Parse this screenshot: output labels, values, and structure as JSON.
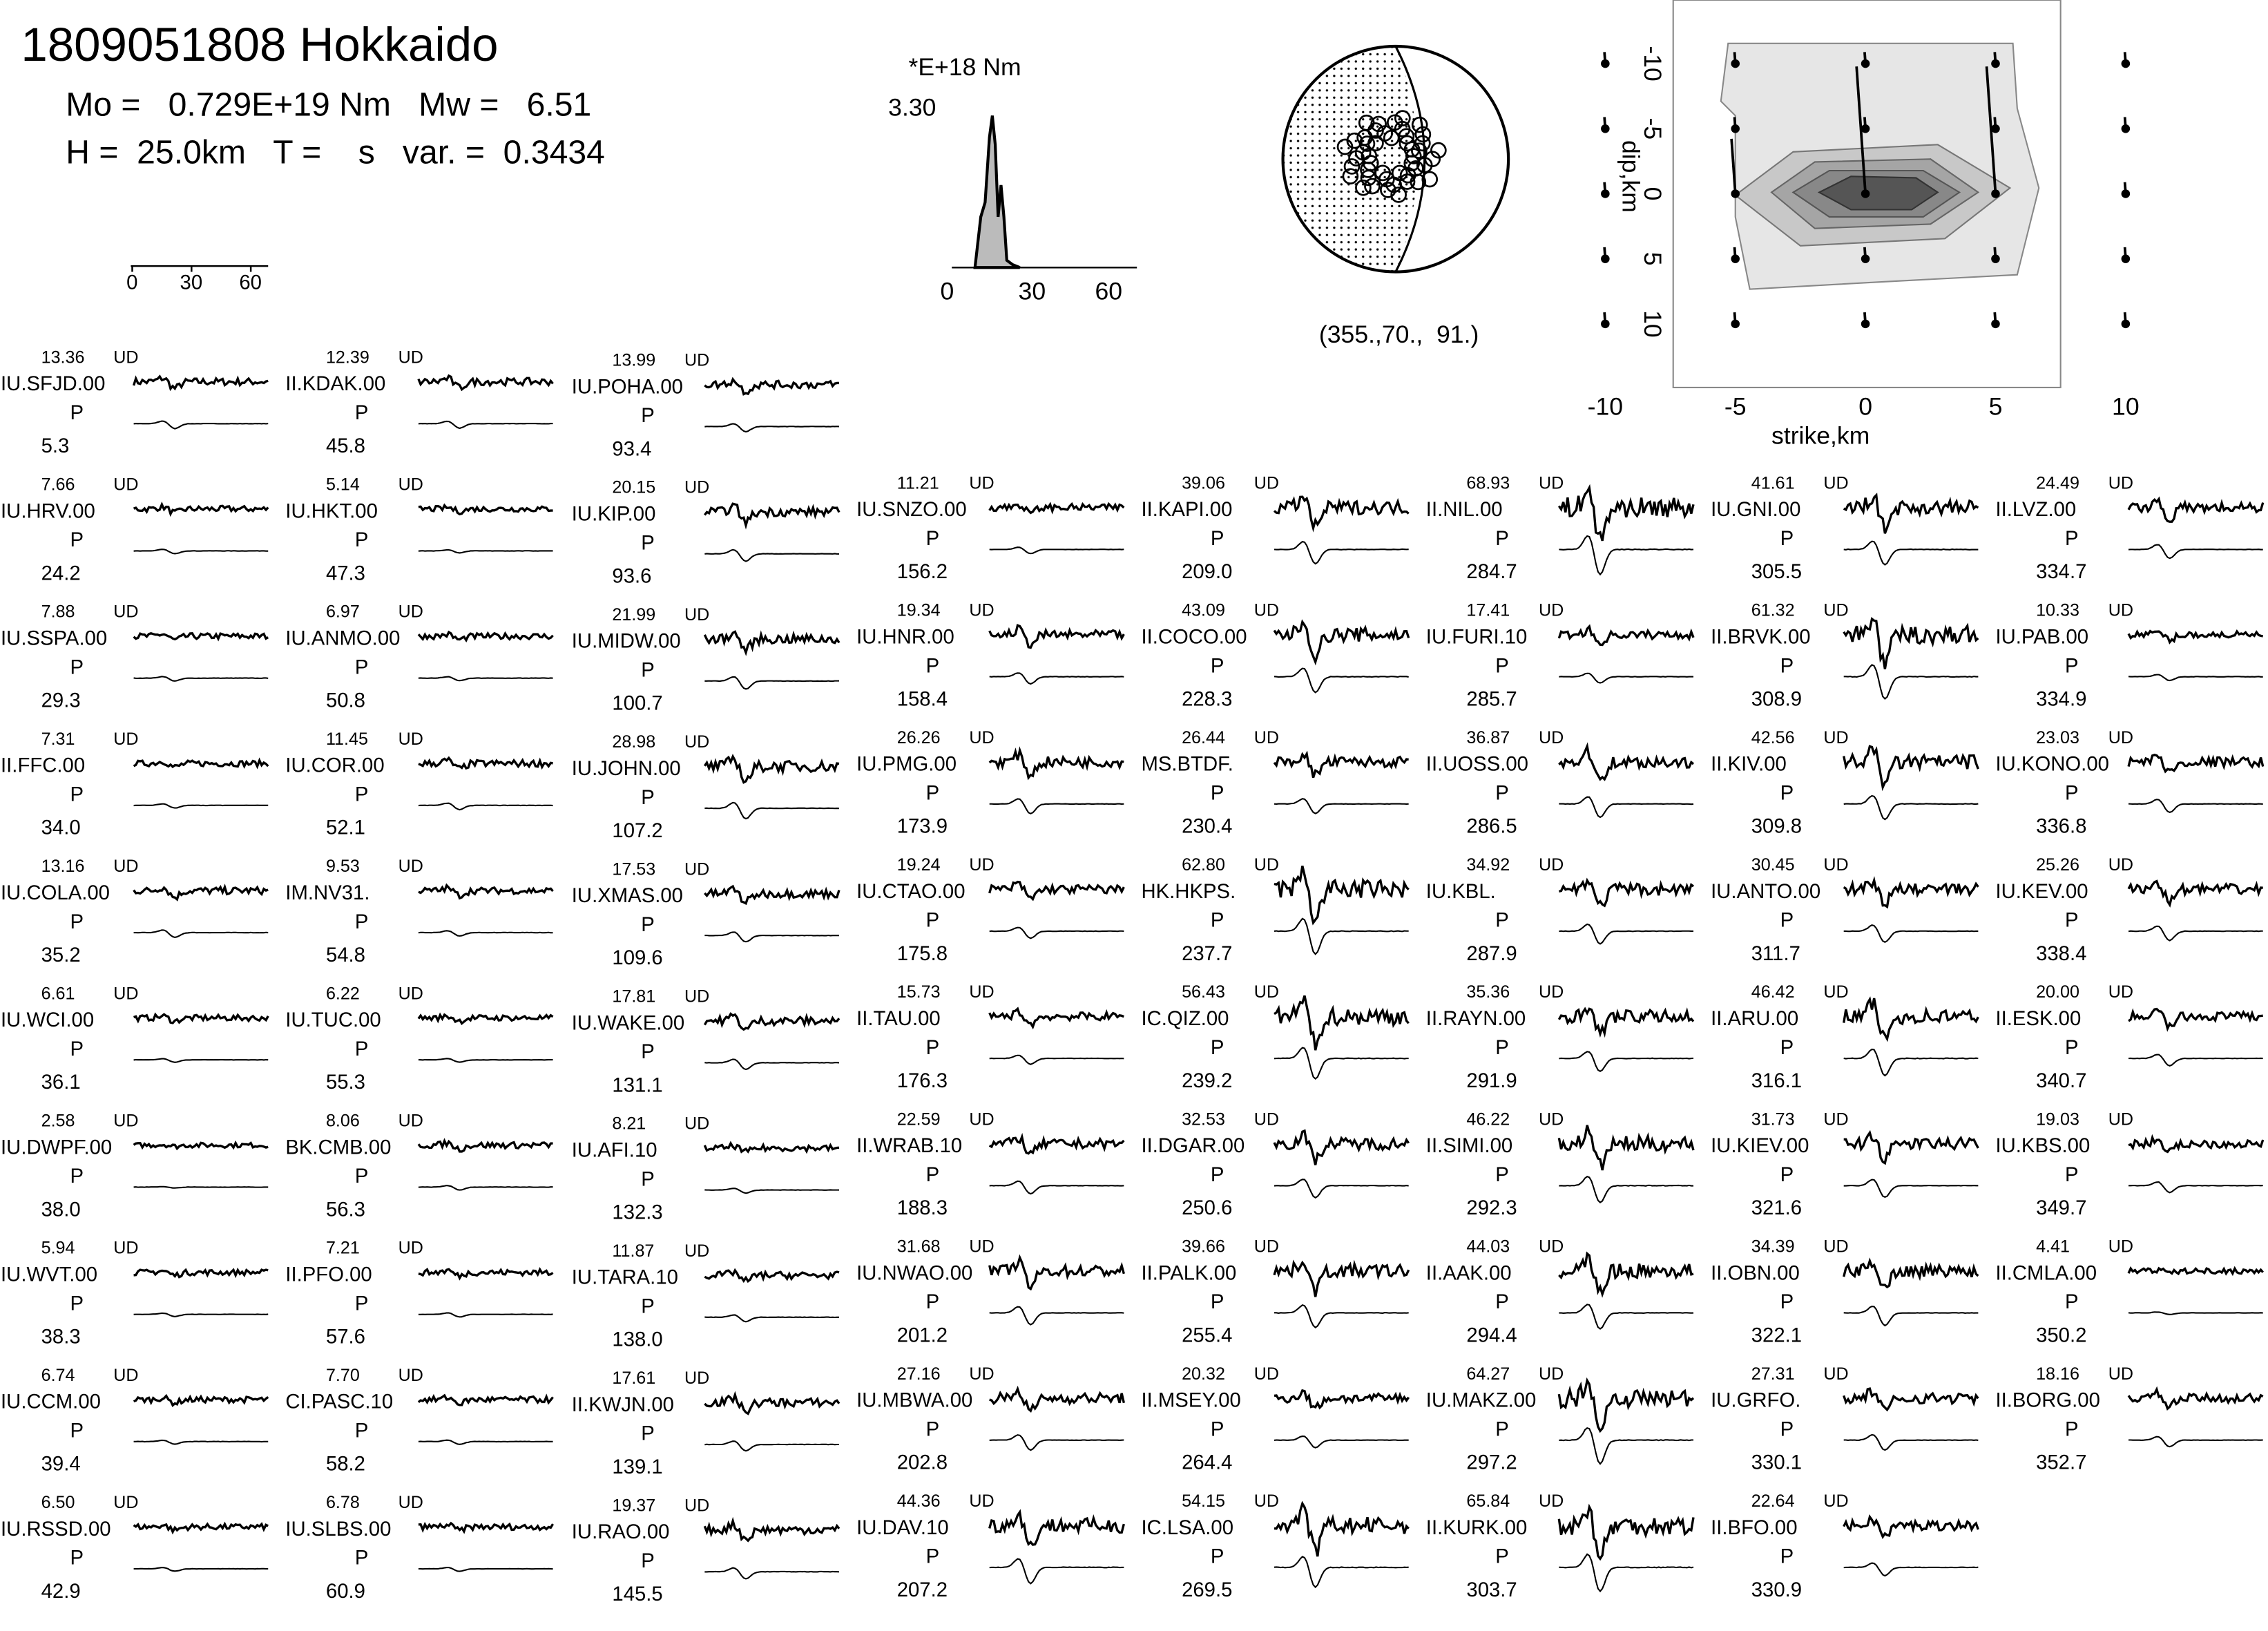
{
  "header": {
    "title": "1809051808 Hokkaido",
    "line1": "Mo =   0.729E+19 Nm   Mw =   6.51",
    "line2": "H =  25.0km   T =    s   var. =  0.3434"
  },
  "scale_bar": {
    "ticks": [
      "0",
      "30",
      "60"
    ]
  },
  "stf": {
    "unit": "*E+18 Nm",
    "max": "3.30",
    "ticks": [
      "0",
      "30",
      "60"
    ]
  },
  "mechanism": {
    "label": "(355.,70.,  91.)"
  },
  "slip_map": {
    "xlabel": "strike,km",
    "ylabel": "dip,km",
    "xticks": [
      "-10",
      "-5",
      "0",
      "5",
      "10"
    ],
    "yticks": [
      "-10",
      "-5",
      "0",
      "5",
      "10"
    ]
  },
  "columns": [
    [
      {
        "name": "IU.SFJD.00",
        "amp": "13.36",
        "comp": "UD",
        "phase": "P",
        "dist": "5.3"
      },
      {
        "name": "IU.HRV.00",
        "amp": "7.66",
        "comp": "UD",
        "phase": "P",
        "dist": "24.2"
      },
      {
        "name": "IU.SSPA.00",
        "amp": "7.88",
        "comp": "UD",
        "phase": "P",
        "dist": "29.3"
      },
      {
        "name": "II.FFC.00",
        "amp": "7.31",
        "comp": "UD",
        "phase": "P",
        "dist": "34.0"
      },
      {
        "name": "IU.COLA.00",
        "amp": "13.16",
        "comp": "UD",
        "phase": "P",
        "dist": "35.2"
      },
      {
        "name": "IU.WCI.00",
        "amp": "6.61",
        "comp": "UD",
        "phase": "P",
        "dist": "36.1"
      },
      {
        "name": "IU.DWPF.00",
        "amp": "2.58",
        "comp": "UD",
        "phase": "P",
        "dist": "38.0"
      },
      {
        "name": "IU.WVT.00",
        "amp": "5.94",
        "comp": "UD",
        "phase": "P",
        "dist": "38.3"
      },
      {
        "name": "IU.CCM.00",
        "amp": "6.74",
        "comp": "UD",
        "phase": "P",
        "dist": "39.4"
      },
      {
        "name": "IU.RSSD.00",
        "amp": "6.50",
        "comp": "UD",
        "phase": "P",
        "dist": "42.9"
      }
    ],
    [
      {
        "name": "II.KDAK.00",
        "amp": "12.39",
        "comp": "UD",
        "phase": "P",
        "dist": "45.8"
      },
      {
        "name": "IU.HKT.00",
        "amp": "5.14",
        "comp": "UD",
        "phase": "P",
        "dist": "47.3"
      },
      {
        "name": "IU.ANMO.00",
        "amp": "6.97",
        "comp": "UD",
        "phase": "P",
        "dist": "50.8"
      },
      {
        "name": "IU.COR.00",
        "amp": "11.45",
        "comp": "UD",
        "phase": "P",
        "dist": "52.1"
      },
      {
        "name": "IM.NV31.",
        "amp": "9.53",
        "comp": "UD",
        "phase": "P",
        "dist": "54.8"
      },
      {
        "name": "IU.TUC.00",
        "amp": "6.22",
        "comp": "UD",
        "phase": "P",
        "dist": "55.3"
      },
      {
        "name": "BK.CMB.00",
        "amp": "8.06",
        "comp": "UD",
        "phase": "P",
        "dist": "56.3"
      },
      {
        "name": "II.PFO.00",
        "amp": "7.21",
        "comp": "UD",
        "phase": "P",
        "dist": "57.6"
      },
      {
        "name": "CI.PASC.10",
        "amp": "7.70",
        "comp": "UD",
        "phase": "P",
        "dist": "58.2"
      },
      {
        "name": "IU.SLBS.00",
        "amp": "6.78",
        "comp": "UD",
        "phase": "P",
        "dist": "60.9"
      }
    ],
    [
      {
        "name": "IU.POHA.00",
        "amp": "13.99",
        "comp": "UD",
        "phase": "P",
        "dist": "93.4"
      },
      {
        "name": "IU.KIP.00",
        "amp": "20.15",
        "comp": "UD",
        "phase": "P",
        "dist": "93.6"
      },
      {
        "name": "IU.MIDW.00",
        "amp": "21.99",
        "comp": "UD",
        "phase": "P",
        "dist": "100.7"
      },
      {
        "name": "IU.JOHN.00",
        "amp": "28.98",
        "comp": "UD",
        "phase": "P",
        "dist": "107.2"
      },
      {
        "name": "IU.XMAS.00",
        "amp": "17.53",
        "comp": "UD",
        "phase": "P",
        "dist": "109.6"
      },
      {
        "name": "IU.WAKE.00",
        "amp": "17.81",
        "comp": "UD",
        "phase": "P",
        "dist": "131.1"
      },
      {
        "name": "IU.AFI.10",
        "amp": "8.21",
        "comp": "UD",
        "phase": "P",
        "dist": "132.3"
      },
      {
        "name": "IU.TARA.10",
        "amp": "11.87",
        "comp": "UD",
        "phase": "P",
        "dist": "138.0"
      },
      {
        "name": "II.KWJN.00",
        "amp": "17.61",
        "comp": "UD",
        "phase": "P",
        "dist": "139.1"
      },
      {
        "name": "IU.RAO.00",
        "amp": "19.37",
        "comp": "UD",
        "phase": "P",
        "dist": "145.5"
      }
    ],
    [
      {
        "name": "IU.SNZO.00",
        "amp": "11.21",
        "comp": "UD",
        "phase": "P",
        "dist": "156.2"
      },
      {
        "name": "IU.HNR.00",
        "amp": "19.34",
        "comp": "UD",
        "phase": "P",
        "dist": "158.4"
      },
      {
        "name": "IU.PMG.00",
        "amp": "26.26",
        "comp": "UD",
        "phase": "P",
        "dist": "173.9"
      },
      {
        "name": "IU.CTAO.00",
        "amp": "19.24",
        "comp": "UD",
        "phase": "P",
        "dist": "175.8"
      },
      {
        "name": "II.TAU.00",
        "amp": "15.73",
        "comp": "UD",
        "phase": "P",
        "dist": "176.3"
      },
      {
        "name": "II.WRAB.10",
        "amp": "22.59",
        "comp": "UD",
        "phase": "P",
        "dist": "188.3"
      },
      {
        "name": "IU.NWAO.00",
        "amp": "31.68",
        "comp": "UD",
        "phase": "P",
        "dist": "201.2"
      },
      {
        "name": "IU.MBWA.00",
        "amp": "27.16",
        "comp": "UD",
        "phase": "P",
        "dist": "202.8"
      },
      {
        "name": "IU.DAV.10",
        "amp": "44.36",
        "comp": "UD",
        "phase": "P",
        "dist": "207.2"
      }
    ],
    [
      {
        "name": "II.KAPI.00",
        "amp": "39.06",
        "comp": "UD",
        "phase": "P",
        "dist": "209.0"
      },
      {
        "name": "II.COCO.00",
        "amp": "43.09",
        "comp": "UD",
        "phase": "P",
        "dist": "228.3"
      },
      {
        "name": "MS.BTDF.",
        "amp": "26.44",
        "comp": "UD",
        "phase": "P",
        "dist": "230.4"
      },
      {
        "name": "HK.HKPS.",
        "amp": "62.80",
        "comp": "UD",
        "phase": "P",
        "dist": "237.7"
      },
      {
        "name": "IC.QIZ.00",
        "amp": "56.43",
        "comp": "UD",
        "phase": "P",
        "dist": "239.2"
      },
      {
        "name": "II.DGAR.00",
        "amp": "32.53",
        "comp": "UD",
        "phase": "P",
        "dist": "250.6"
      },
      {
        "name": "II.PALK.00",
        "amp": "39.66",
        "comp": "UD",
        "phase": "P",
        "dist": "255.4"
      },
      {
        "name": "II.MSEY.00",
        "amp": "20.32",
        "comp": "UD",
        "phase": "P",
        "dist": "264.4"
      },
      {
        "name": "IC.LSA.00",
        "amp": "54.15",
        "comp": "UD",
        "phase": "P",
        "dist": "269.5"
      }
    ],
    [
      {
        "name": "II.NIL.00",
        "amp": "68.93",
        "comp": "UD",
        "phase": "P",
        "dist": "284.7"
      },
      {
        "name": "IU.FURI.10",
        "amp": "17.41",
        "comp": "UD",
        "phase": "P",
        "dist": "285.7"
      },
      {
        "name": "II.UOSS.00",
        "amp": "36.87",
        "comp": "UD",
        "phase": "P",
        "dist": "286.5"
      },
      {
        "name": "IU.KBL.",
        "amp": "34.92",
        "comp": "UD",
        "phase": "P",
        "dist": "287.9"
      },
      {
        "name": "II.RAYN.00",
        "amp": "35.36",
        "comp": "UD",
        "phase": "P",
        "dist": "291.9"
      },
      {
        "name": "II.SIMI.00",
        "amp": "46.22",
        "comp": "UD",
        "phase": "P",
        "dist": "292.3"
      },
      {
        "name": "II.AAK.00",
        "amp": "44.03",
        "comp": "UD",
        "phase": "P",
        "dist": "294.4"
      },
      {
        "name": "IU.MAKZ.00",
        "amp": "64.27",
        "comp": "UD",
        "phase": "P",
        "dist": "297.2"
      },
      {
        "name": "II.KURK.00",
        "amp": "65.84",
        "comp": "UD",
        "phase": "P",
        "dist": "303.7"
      }
    ],
    [
      {
        "name": "IU.GNI.00",
        "amp": "41.61",
        "comp": "UD",
        "phase": "P",
        "dist": "305.5"
      },
      {
        "name": "II.BRVK.00",
        "amp": "61.32",
        "comp": "UD",
        "phase": "P",
        "dist": "308.9"
      },
      {
        "name": "II.KIV.00",
        "amp": "42.56",
        "comp": "UD",
        "phase": "P",
        "dist": "309.8"
      },
      {
        "name": "IU.ANTO.00",
        "amp": "30.45",
        "comp": "UD",
        "phase": "P",
        "dist": "311.7"
      },
      {
        "name": "II.ARU.00",
        "amp": "46.42",
        "comp": "UD",
        "phase": "P",
        "dist": "316.1"
      },
      {
        "name": "IU.KIEV.00",
        "amp": "31.73",
        "comp": "UD",
        "phase": "P",
        "dist": "321.6"
      },
      {
        "name": "II.OBN.00",
        "amp": "34.39",
        "comp": "UD",
        "phase": "P",
        "dist": "322.1"
      },
      {
        "name": "IU.GRFO.",
        "amp": "27.31",
        "comp": "UD",
        "phase": "P",
        "dist": "330.1"
      },
      {
        "name": "II.BFO.00",
        "amp": "22.64",
        "comp": "UD",
        "phase": "P",
        "dist": "330.9"
      }
    ],
    [
      {
        "name": "II.LVZ.00",
        "amp": "24.49",
        "comp": "UD",
        "phase": "P",
        "dist": "334.7"
      },
      {
        "name": "IU.PAB.00",
        "amp": "10.33",
        "comp": "UD",
        "phase": "P",
        "dist": "334.9"
      },
      {
        "name": "IU.KONO.00",
        "amp": "23.03",
        "comp": "UD",
        "phase": "P",
        "dist": "336.8"
      },
      {
        "name": "IU.KEV.00",
        "amp": "25.26",
        "comp": "UD",
        "phase": "P",
        "dist": "338.4"
      },
      {
        "name": "II.ESK.00",
        "amp": "20.00",
        "comp": "UD",
        "phase": "P",
        "dist": "340.7"
      },
      {
        "name": "IU.KBS.00",
        "amp": "19.03",
        "comp": "UD",
        "phase": "P",
        "dist": "349.7"
      },
      {
        "name": "II.CMLA.00",
        "amp": "4.41",
        "comp": "UD",
        "phase": "P",
        "dist": "350.2"
      },
      {
        "name": "II.BORG.00",
        "amp": "18.16",
        "comp": "UD",
        "phase": "P",
        "dist": "352.7"
      }
    ]
  ]
}
